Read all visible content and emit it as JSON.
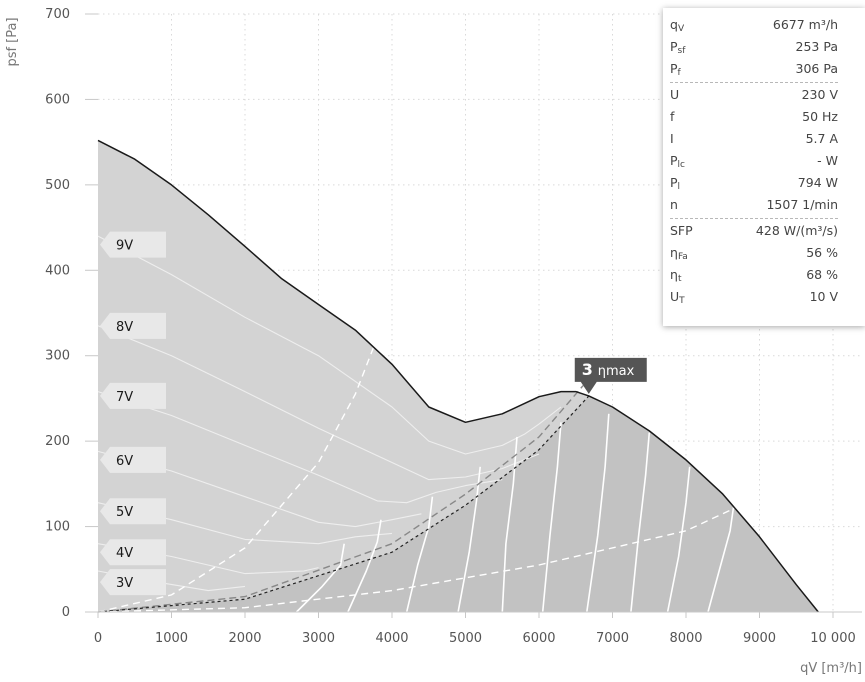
{
  "chart_data": {
    "type": "line",
    "xlabel": "qV [m³/h]",
    "ylabel": "psf [Pa]",
    "xlim": [
      0,
      10000
    ],
    "ylim": [
      0,
      700
    ],
    "x_ticks": [
      0,
      1000,
      2000,
      3000,
      4000,
      5000,
      6000,
      7000,
      8000,
      9000,
      10000
    ],
    "x_tick_labels": [
      "0",
      "1000",
      "2000",
      "3000",
      "4000",
      "5000",
      "6000",
      "7000",
      "8000",
      "9000",
      "10 000"
    ],
    "y_ticks": [
      0,
      100,
      200,
      300,
      400,
      500,
      600,
      700
    ],
    "y_tick_labels": [
      "0",
      "100",
      "200",
      "300",
      "400",
      "500",
      "600",
      "700"
    ],
    "grid": true,
    "max_curve": {
      "x": [
        0,
        500,
        1000,
        1500,
        2000,
        2500,
        3000,
        3500,
        3750,
        4000,
        4500,
        5000,
        5500,
        6000,
        6300,
        6500,
        6677,
        7000,
        7500,
        8000,
        8500,
        9000,
        9500,
        9800
      ],
      "y": [
        552,
        530,
        500,
        465,
        428,
        390,
        360,
        330,
        310,
        290,
        240,
        222,
        232,
        252,
        258,
        258,
        253,
        240,
        212,
        178,
        138,
        88,
        32,
        0
      ]
    },
    "voltage_curves": [
      {
        "label": "9V",
        "x": [
          0,
          1000,
          2000,
          3000,
          4000,
          4500,
          5000,
          5500,
          5800,
          6000,
          6300
        ],
        "y": [
          440,
          395,
          345,
          300,
          240,
          200,
          185,
          195,
          208,
          220,
          240
        ]
      },
      {
        "label": "8V",
        "x": [
          0,
          1000,
          2000,
          3000,
          4000,
          4500,
          5000,
          5500,
          6000
        ],
        "y": [
          335,
          300,
          258,
          215,
          175,
          155,
          158,
          168,
          185
        ]
      },
      {
        "label": "7V",
        "x": [
          0,
          1000,
          2000,
          3000,
          3800,
          4200,
          4600,
          5000,
          5500
        ],
        "y": [
          258,
          230,
          195,
          160,
          130,
          128,
          140,
          148,
          155
        ]
      },
      {
        "label": "6V",
        "x": [
          0,
          1000,
          2000,
          3000,
          3500,
          4000,
          4400
        ],
        "y": [
          188,
          165,
          135,
          105,
          100,
          108,
          115
        ]
      },
      {
        "label": "5V",
        "x": [
          0,
          1000,
          2000,
          3000,
          3500,
          4000
        ],
        "y": [
          128,
          108,
          85,
          80,
          88,
          92
        ]
      },
      {
        "label": "4V",
        "x": [
          0,
          1000,
          2000,
          2800,
          3000
        ],
        "y": [
          80,
          65,
          45,
          48,
          52
        ]
      },
      {
        "label": "3V",
        "x": [
          0,
          800,
          1500,
          2000
        ],
        "y": [
          48,
          35,
          25,
          30
        ]
      }
    ],
    "isoefficiency_curves": [
      {
        "x": [
          3350,
          3300,
          3050,
          2700
        ],
        "y": [
          80,
          55,
          30,
          0
        ]
      },
      {
        "x": [
          3850,
          3800,
          3650,
          3400
        ],
        "y": [
          108,
          82,
          48,
          0
        ]
      },
      {
        "x": [
          4550,
          4500,
          4350,
          4200
        ],
        "y": [
          135,
          100,
          55,
          0
        ]
      },
      {
        "x": [
          5200,
          5150,
          5050,
          4900
        ],
        "y": [
          170,
          130,
          70,
          0
        ]
      },
      {
        "x": [
          5700,
          5650,
          5550,
          5500
        ],
        "y": [
          205,
          150,
          80,
          0
        ]
      },
      {
        "x": [
          6300,
          6250,
          6150,
          6050
        ],
        "y": [
          222,
          170,
          90,
          0
        ]
      },
      {
        "x": [
          6950,
          6900,
          6800,
          6650
        ],
        "y": [
          232,
          170,
          90,
          0
        ]
      },
      {
        "x": [
          7500,
          7450,
          7350,
          7250
        ],
        "y": [
          210,
          160,
          85,
          0
        ]
      },
      {
        "x": [
          8050,
          8000,
          7900,
          7750
        ],
        "y": [
          170,
          128,
          65,
          0
        ]
      },
      {
        "x": [
          8650,
          8600,
          8450,
          8300
        ],
        "y": [
          125,
          95,
          48,
          0
        ]
      }
    ],
    "dashed_lines": [
      {
        "x": [
          0,
          1000,
          2000,
          3000,
          3500,
          3750
        ],
        "y": [
          0,
          20,
          75,
          175,
          255,
          310
        ]
      },
      {
        "x": [
          0,
          2000,
          4000,
          5000,
          6000,
          6600
        ],
        "y": [
          0,
          18,
          80,
          138,
          205,
          265
        ]
      },
      {
        "x": [
          0,
          2000,
          4000,
          5000,
          6000,
          6700
        ],
        "y": [
          0,
          15,
          70,
          125,
          190,
          255
        ]
      },
      {
        "x": [
          0,
          2000,
          4000,
          6000,
          8000,
          8750
        ],
        "y": [
          0,
          5,
          25,
          55,
          95,
          125
        ]
      }
    ],
    "operating_point": {
      "x": 6677,
      "y": 253,
      "number": "3",
      "label": "ηmax"
    },
    "voltage_labels": [
      {
        "text": "9V",
        "y": 430
      },
      {
        "text": "8V",
        "y": 335
      },
      {
        "text": "7V",
        "y": 253
      },
      {
        "text": "6V",
        "y": 178
      },
      {
        "text": "5V",
        "y": 118
      },
      {
        "text": "4V",
        "y": 70
      },
      {
        "text": "3V",
        "y": 35
      }
    ],
    "colors": {
      "fill_light": "#d3d3d3",
      "fill_dark": "#c2c2c2",
      "max_curve": "#1a1a1a",
      "voltage_curve": "#eeeeee",
      "isoefficiency": "#ffffff",
      "point_marker": "#555555"
    }
  },
  "info": {
    "group1": [
      {
        "sym": "q",
        "sub": "V",
        "value": "6677 m³/h"
      },
      {
        "sym": "P",
        "sub": "sf",
        "value": "253 Pa"
      },
      {
        "sym": "P",
        "sub": "f",
        "value": "306 Pa"
      }
    ],
    "group2": [
      {
        "sym": "U",
        "sub": "",
        "value": "230 V"
      },
      {
        "sym": "f",
        "sub": "",
        "value": "50 Hz"
      },
      {
        "sym": "I",
        "sub": "",
        "value": "5.7 A"
      },
      {
        "sym": "P",
        "sub": "lc",
        "value": "- W"
      },
      {
        "sym": "P",
        "sub": "l",
        "value": "794 W"
      },
      {
        "sym": "n",
        "sub": "",
        "value": "1507 1/min"
      }
    ],
    "group3": [
      {
        "sym": "SFP",
        "sub": "",
        "value": "428 W/(m³/s)"
      },
      {
        "sym": "η",
        "sub": "Fa",
        "value": "56 %"
      },
      {
        "sym": "η",
        "sub": "t",
        "value": "68 %"
      },
      {
        "sym": "U",
        "sub": "T",
        "value": "10 V"
      }
    ]
  }
}
